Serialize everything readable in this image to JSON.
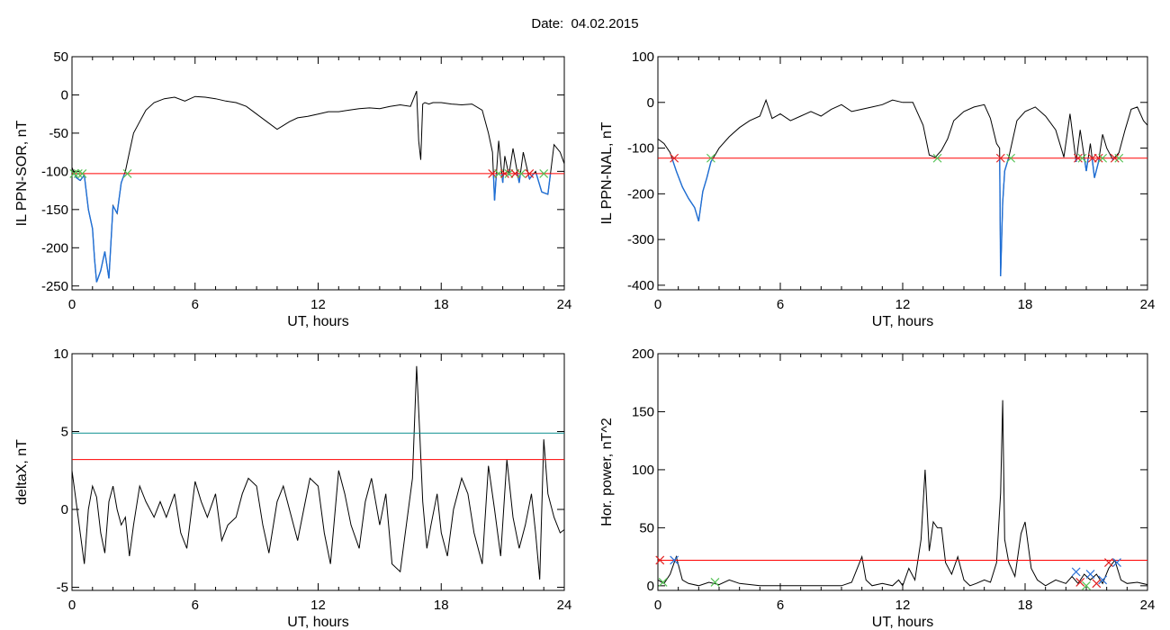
{
  "header": {
    "title": "Date:  04.02.2015"
  },
  "colors": {
    "trace": "#000000",
    "threshold": "#ff0000",
    "threshold2": "#0b8f8f",
    "highlight": "#1f6fd6",
    "crossing_red": "#e02020",
    "crossing_green": "#55c255",
    "crossing_blue": "#2a6fd6"
  },
  "chart_data": [
    {
      "type": "line",
      "xlabel": "UT, hours",
      "ylabel": "IL PPN-SOR, nT",
      "xlim": [
        0,
        24
      ],
      "ylim": [
        -255,
        50
      ],
      "xticks": [
        0,
        6,
        12,
        18,
        24
      ],
      "yticks": [
        50,
        0,
        -50,
        -100,
        -150,
        -200,
        -250
      ],
      "thresholds": [
        {
          "value": -103,
          "color": "red"
        }
      ],
      "series": [
        {
          "x": [
            0,
            0.2,
            0.4,
            0.6,
            0.8,
            1.0,
            1.1,
            1.2,
            1.4,
            1.6,
            1.8,
            2.0,
            2.2,
            2.4,
            2.6,
            2.8,
            3.0,
            3.3,
            3.6,
            4.0,
            4.5,
            5.0,
            5.5,
            6.0,
            6.5,
            7.0,
            7.5,
            8.0,
            8.5,
            9.0,
            9.5,
            10.0,
            10.3,
            10.6,
            11.0,
            11.5,
            12.0,
            12.5,
            13.0,
            13.5,
            14.0,
            14.5,
            15.0,
            15.5,
            16.0,
            16.5,
            16.8,
            16.9,
            17.0,
            17.1,
            17.2,
            17.4,
            17.6,
            18.0,
            18.5,
            19.0,
            19.5,
            20.0,
            20.3,
            20.5,
            20.6,
            20.8,
            21.0,
            21.1,
            21.3,
            21.5,
            21.8,
            22.0,
            22.3,
            22.6,
            22.9,
            23.2,
            23.5,
            23.8,
            24.0
          ],
          "y": [
            -95,
            -108,
            -112,
            -105,
            -150,
            -175,
            -215,
            -245,
            -230,
            -205,
            -240,
            -145,
            -155,
            -115,
            -100,
            -75,
            -50,
            -35,
            -20,
            -10,
            -5,
            -3,
            -8,
            -2,
            -3,
            -5,
            -8,
            -10,
            -15,
            -25,
            -35,
            -45,
            -40,
            -35,
            -30,
            -28,
            -25,
            -22,
            -22,
            -20,
            -18,
            -17,
            -18,
            -15,
            -13,
            -15,
            5,
            -60,
            -85,
            -12,
            -10,
            -12,
            -10,
            -10,
            -12,
            -13,
            -12,
            -20,
            -50,
            -75,
            -138,
            -60,
            -115,
            -80,
            -105,
            -70,
            -115,
            -75,
            -110,
            -100,
            -127,
            -130,
            -65,
            -75,
            -90
          ]
        }
      ],
      "highlight_below": -103,
      "markers": [
        {
          "x": 0.1,
          "y": -103,
          "color": "green"
        },
        {
          "x": 0.3,
          "y": -103,
          "color": "green"
        },
        {
          "x": 0.5,
          "y": -103,
          "color": "green"
        },
        {
          "x": 2.7,
          "y": -103,
          "color": "green"
        },
        {
          "x": 20.5,
          "y": -103,
          "color": "red"
        },
        {
          "x": 20.8,
          "y": -103,
          "color": "green"
        },
        {
          "x": 21.1,
          "y": -103,
          "color": "red"
        },
        {
          "x": 21.3,
          "y": -103,
          "color": "green"
        },
        {
          "x": 21.6,
          "y": -103,
          "color": "red"
        },
        {
          "x": 21.9,
          "y": -103,
          "color": "green"
        },
        {
          "x": 22.3,
          "y": -103,
          "color": "red"
        },
        {
          "x": 23.0,
          "y": -103,
          "color": "green"
        }
      ]
    },
    {
      "type": "line",
      "xlabel": "UT, hours",
      "ylabel": "IL PPN-NAL, nT",
      "xlim": [
        0,
        24
      ],
      "ylim": [
        -410,
        100
      ],
      "xticks": [
        0,
        6,
        12,
        18,
        24
      ],
      "yticks": [
        100,
        0,
        -100,
        -200,
        -300,
        -400
      ],
      "thresholds": [
        {
          "value": -122,
          "color": "red"
        }
      ],
      "series": [
        {
          "x": [
            0,
            0.3,
            0.6,
            0.9,
            1.2,
            1.5,
            1.8,
            2.0,
            2.2,
            2.4,
            2.6,
            2.8,
            3.0,
            3.5,
            4.0,
            4.5,
            5.0,
            5.3,
            5.6,
            6.0,
            6.5,
            7.0,
            7.5,
            8.0,
            8.5,
            9.0,
            9.5,
            10.0,
            10.5,
            11.0,
            11.5,
            12.0,
            12.5,
            13.0,
            13.3,
            13.6,
            13.9,
            14.2,
            14.5,
            15.0,
            15.5,
            16.0,
            16.3,
            16.6,
            16.75,
            16.8,
            16.9,
            17.0,
            17.2,
            17.4,
            17.6,
            18.0,
            18.5,
            19.0,
            19.5,
            19.9,
            20.2,
            20.5,
            20.7,
            21.0,
            21.2,
            21.4,
            21.6,
            21.8,
            22.0,
            22.3,
            22.6,
            22.9,
            23.2,
            23.5,
            23.8,
            24.0
          ],
          "y": [
            -80,
            -90,
            -110,
            -150,
            -185,
            -210,
            -230,
            -260,
            -195,
            -165,
            -130,
            -115,
            -100,
            -75,
            -55,
            -40,
            -30,
            5,
            -35,
            -25,
            -40,
            -30,
            -20,
            -30,
            -15,
            -5,
            -20,
            -15,
            -10,
            -5,
            5,
            0,
            0,
            -50,
            -115,
            -120,
            -105,
            -80,
            -40,
            -20,
            -10,
            -5,
            -35,
            -90,
            -100,
            -380,
            -220,
            -150,
            -120,
            -80,
            -40,
            -20,
            -10,
            -30,
            -60,
            -120,
            -25,
            -130,
            -60,
            -150,
            -90,
            -165,
            -130,
            -70,
            -100,
            -125,
            -110,
            -60,
            -15,
            -10,
            -40,
            -50
          ]
        }
      ],
      "highlight_below": -122,
      "markers": [
        {
          "x": 0.8,
          "y": -122,
          "color": "red"
        },
        {
          "x": 2.6,
          "y": -122,
          "color": "green"
        },
        {
          "x": 13.7,
          "y": -122,
          "color": "green"
        },
        {
          "x": 16.8,
          "y": -122,
          "color": "red"
        },
        {
          "x": 17.3,
          "y": -122,
          "color": "green"
        },
        {
          "x": 20.6,
          "y": -122,
          "color": "red"
        },
        {
          "x": 20.8,
          "y": -122,
          "color": "green"
        },
        {
          "x": 21.3,
          "y": -122,
          "color": "red"
        },
        {
          "x": 21.6,
          "y": -122,
          "color": "red"
        },
        {
          "x": 21.8,
          "y": -122,
          "color": "green"
        },
        {
          "x": 22.4,
          "y": -122,
          "color": "red"
        },
        {
          "x": 22.6,
          "y": -122,
          "color": "green"
        }
      ]
    },
    {
      "type": "line",
      "xlabel": "UT, hours",
      "ylabel": "deltaX, nT",
      "xlim": [
        0,
        24
      ],
      "ylim": [
        -5.2,
        10
      ],
      "xticks": [
        0,
        6,
        12,
        18,
        24
      ],
      "yticks": [
        10,
        5,
        0,
        -5
      ],
      "thresholds": [
        {
          "value": 4.9,
          "color": "teal"
        },
        {
          "value": 3.2,
          "color": "red"
        }
      ],
      "series": [
        {
          "x": [
            0,
            0.2,
            0.4,
            0.6,
            0.8,
            1.0,
            1.2,
            1.4,
            1.6,
            1.8,
            2.0,
            2.2,
            2.4,
            2.6,
            2.8,
            3.0,
            3.3,
            3.6,
            4.0,
            4.3,
            4.6,
            5.0,
            5.3,
            5.6,
            6.0,
            6.3,
            6.6,
            7.0,
            7.3,
            7.6,
            8.0,
            8.3,
            8.6,
            9.0,
            9.3,
            9.6,
            10.0,
            10.3,
            10.6,
            11.0,
            11.3,
            11.6,
            12.0,
            12.3,
            12.6,
            13.0,
            13.3,
            13.6,
            14.0,
            14.3,
            14.6,
            15.0,
            15.3,
            15.6,
            16.0,
            16.3,
            16.6,
            16.8,
            16.95,
            17.1,
            17.3,
            17.5,
            17.8,
            18.0,
            18.3,
            18.6,
            19.0,
            19.3,
            19.6,
            20.0,
            20.3,
            20.6,
            20.9,
            21.2,
            21.5,
            21.8,
            22.1,
            22.4,
            22.6,
            22.8,
            23.0,
            23.2,
            23.5,
            23.8,
            24.0
          ],
          "y": [
            2.5,
            0.5,
            -1.5,
            -3.5,
            0,
            1.5,
            0.8,
            -1.5,
            -2.8,
            0.5,
            1.5,
            0,
            -1,
            -0.5,
            -3,
            -1,
            1.5,
            0.5,
            -0.5,
            0.5,
            -0.5,
            1,
            -1.5,
            -2.5,
            1.8,
            0.5,
            -0.5,
            1,
            -2,
            -1,
            -0.5,
            1,
            2,
            1.5,
            -1,
            -2.8,
            0.5,
            1.5,
            0,
            -2,
            0,
            2,
            1.5,
            -1.5,
            -3.5,
            2.5,
            1,
            -1,
            -2.5,
            0.5,
            2,
            -1,
            1,
            -3.5,
            -4,
            -1,
            2,
            9.2,
            5,
            0.5,
            -2.5,
            -1,
            1,
            -1.5,
            -3,
            0,
            2,
            1,
            -1.5,
            -3.5,
            2.8,
            0,
            -3,
            3.2,
            -0.5,
            -2.5,
            -1,
            1,
            -1.5,
            -4.5,
            4.5,
            1,
            -0.5,
            -1.5,
            -1.3
          ]
        }
      ]
    },
    {
      "type": "line",
      "xlabel": "UT, hours",
      "ylabel": "Hor. power, nT^2",
      "xlim": [
        0,
        24
      ],
      "ylim": [
        -4,
        200
      ],
      "xticks": [
        0,
        6,
        12,
        18,
        24
      ],
      "yticks": [
        200,
        150,
        100,
        50,
        0
      ],
      "thresholds": [
        {
          "value": 22,
          "color": "red"
        }
      ],
      "series": [
        {
          "x": [
            0,
            0.3,
            0.6,
            0.9,
            1.2,
            1.5,
            2.0,
            2.5,
            3.0,
            3.5,
            4.0,
            5.0,
            6.0,
            7.0,
            8.0,
            9.0,
            9.5,
            10.0,
            10.2,
            10.5,
            11.0,
            11.5,
            11.8,
            12.0,
            12.3,
            12.6,
            12.9,
            13.1,
            13.3,
            13.5,
            13.7,
            13.9,
            14.1,
            14.4,
            14.7,
            15.0,
            15.3,
            15.6,
            16.0,
            16.3,
            16.6,
            16.8,
            16.9,
            17.0,
            17.2,
            17.5,
            17.8,
            18.0,
            18.3,
            18.6,
            19.0,
            19.5,
            20.0,
            20.3,
            20.6,
            20.9,
            21.2,
            21.5,
            21.8,
            22.1,
            22.4,
            22.7,
            23.0,
            23.5,
            24.0
          ],
          "y": [
            5,
            2,
            10,
            25,
            5,
            2,
            0,
            3,
            1,
            5,
            2,
            0,
            0,
            0,
            0,
            0,
            3,
            25,
            5,
            0,
            2,
            0,
            5,
            0,
            15,
            5,
            40,
            100,
            30,
            55,
            50,
            50,
            20,
            10,
            25,
            5,
            0,
            2,
            5,
            3,
            20,
            80,
            160,
            40,
            20,
            8,
            45,
            55,
            15,
            5,
            0,
            5,
            2,
            8,
            2,
            10,
            5,
            10,
            2,
            15,
            22,
            5,
            2,
            3,
            1
          ]
        }
      ],
      "markers": [
        {
          "x": 0.1,
          "y": 22,
          "color": "red"
        },
        {
          "x": 0.25,
          "y": 3,
          "color": "green"
        },
        {
          "x": 0.8,
          "y": 22,
          "color": "blue"
        },
        {
          "x": 2.8,
          "y": 3,
          "color": "green"
        },
        {
          "x": 20.5,
          "y": 12,
          "color": "blue"
        },
        {
          "x": 20.7,
          "y": 3,
          "color": "red"
        },
        {
          "x": 21.2,
          "y": 10,
          "color": "blue"
        },
        {
          "x": 21.5,
          "y": 2,
          "color": "red"
        },
        {
          "x": 21.8,
          "y": 5,
          "color": "blue"
        },
        {
          "x": 22.1,
          "y": 20,
          "color": "red"
        },
        {
          "x": 22.5,
          "y": 20,
          "color": "blue"
        },
        {
          "x": 21.0,
          "y": 0,
          "color": "green"
        }
      ]
    }
  ]
}
